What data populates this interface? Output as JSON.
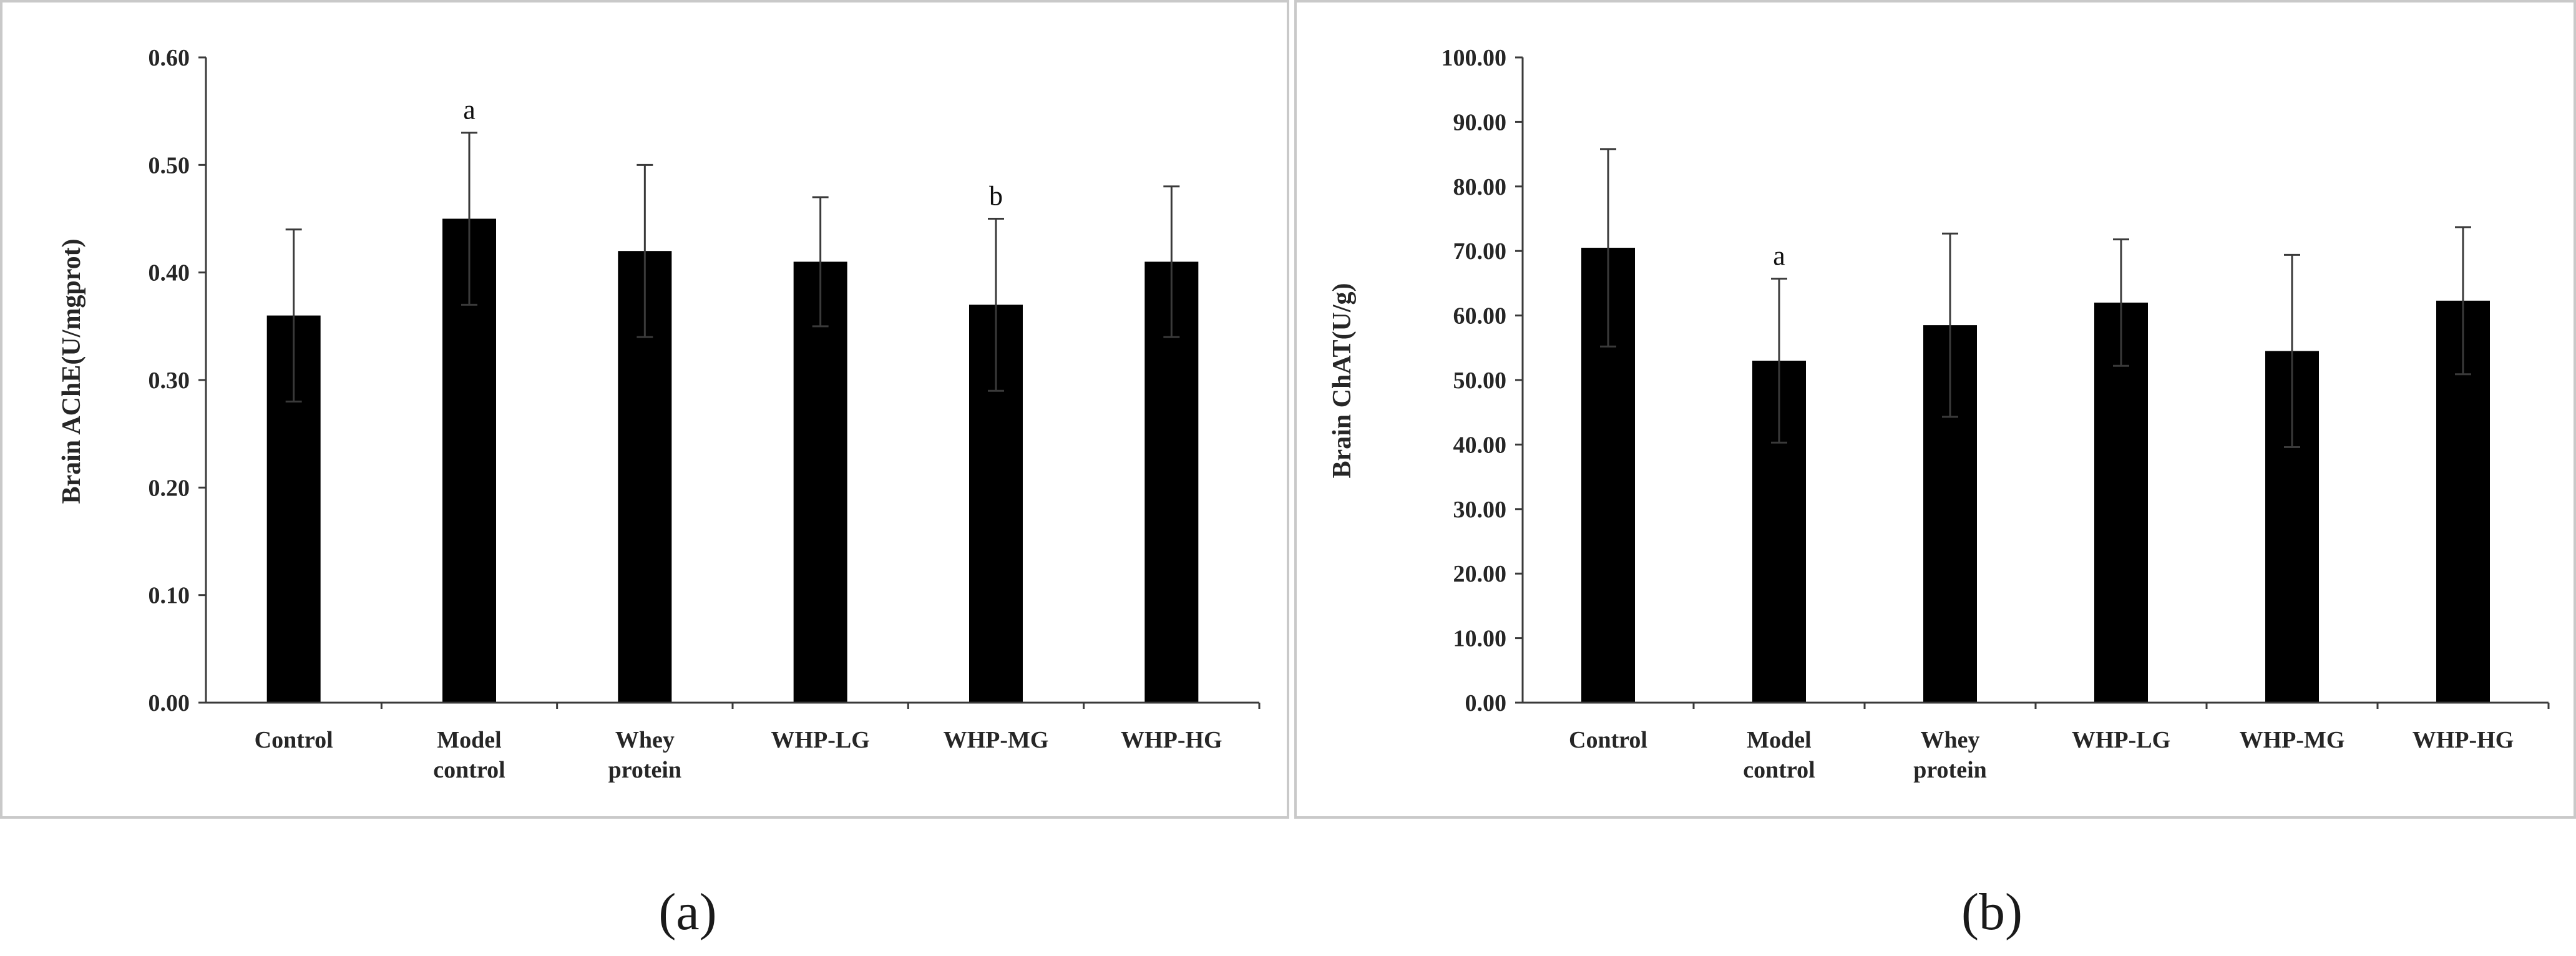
{
  "colors": {
    "bar": "#000000",
    "axis": "#3a3a3a",
    "frame": "#c9c9c9",
    "text": "#262626"
  },
  "chart_data": [
    {
      "type": "bar",
      "panel_label": "(a)",
      "title": "",
      "xlabel": "",
      "ylabel": "Brain AChE(U/mgprot)",
      "ylim": [
        0,
        0.6
      ],
      "y_ticks": [
        "0.00",
        "0.10",
        "0.20",
        "0.30",
        "0.40",
        "0.50",
        "0.60"
      ],
      "categories": [
        [
          "Control"
        ],
        [
          "Model",
          "control"
        ],
        [
          "Whey",
          "protein"
        ],
        [
          "WHP-LG"
        ],
        [
          "WHP-MG"
        ],
        [
          "WHP-HG"
        ]
      ],
      "values": [
        0.36,
        0.45,
        0.42,
        0.41,
        0.37,
        0.41
      ],
      "errors": [
        0.08,
        0.08,
        0.08,
        0.06,
        0.08,
        0.07
      ],
      "annotations": [
        "",
        "a",
        "",
        "",
        "b",
        ""
      ],
      "grid": false,
      "legend": "none"
    },
    {
      "type": "bar",
      "panel_label": "(b)",
      "title": "",
      "xlabel": "",
      "ylabel": "Brain ChAT(U/g)",
      "ylim": [
        0,
        100
      ],
      "y_ticks": [
        "0.00",
        "10.00",
        "20.00",
        "30.00",
        "40.00",
        "50.00",
        "60.00",
        "70.00",
        "80.00",
        "90.00",
        "100.00"
      ],
      "categories": [
        [
          "Control"
        ],
        [
          "Model",
          "control"
        ],
        [
          "Whey",
          "protein"
        ],
        [
          "WHP-LG"
        ],
        [
          "WHP-MG"
        ],
        [
          "WHP-HG"
        ]
      ],
      "values": [
        70.5,
        53.0,
        58.5,
        62.0,
        54.5,
        62.3
      ],
      "errors": [
        15.3,
        12.7,
        14.2,
        9.8,
        14.9,
        11.4
      ],
      "annotations": [
        "",
        "a",
        "",
        "",
        "",
        ""
      ],
      "grid": false,
      "legend": "none"
    }
  ]
}
